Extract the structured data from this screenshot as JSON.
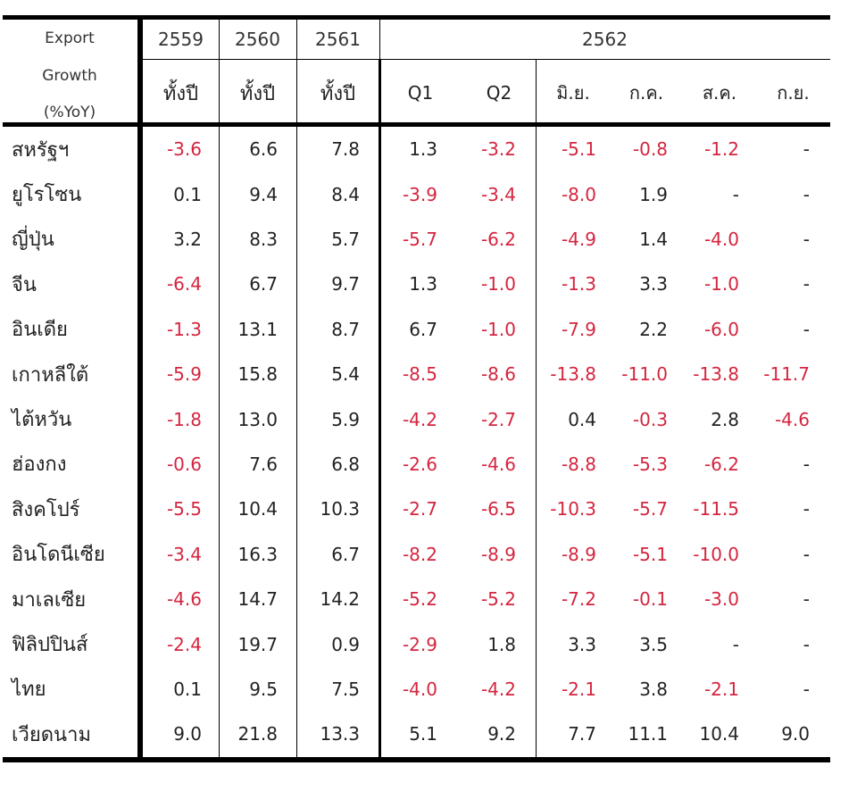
{
  "table": {
    "corner_label_lines": [
      "Export",
      "Growth",
      "(%YoY)"
    ],
    "year_headers": [
      "2559",
      "2560",
      "2561",
      "2562"
    ],
    "sub_headers": [
      "ทั้งปี",
      "ทั้งปี",
      "ทั้งปี",
      "Q1",
      "Q2",
      "มิ.ย.",
      "ก.ค.",
      "ส.ค.",
      "ก.ย."
    ],
    "negative_color": "#d4253f",
    "text_color": "#222222",
    "rows": [
      {
        "country": "สหรัฐฯ",
        "values": [
          "-3.6",
          "6.6",
          "7.8",
          "1.3",
          "-3.2",
          "-5.1",
          "-0.8",
          "-1.2",
          "-"
        ]
      },
      {
        "country": "ยูโรโซน",
        "values": [
          "0.1",
          "9.4",
          "8.4",
          "-3.9",
          "-3.4",
          "-8.0",
          "1.9",
          "-",
          "-"
        ]
      },
      {
        "country": "ญี่ปุ่น",
        "values": [
          "3.2",
          "8.3",
          "5.7",
          "-5.7",
          "-6.2",
          "-4.9",
          "1.4",
          "-4.0",
          "-"
        ]
      },
      {
        "country": "จีน",
        "values": [
          "-6.4",
          "6.7",
          "9.7",
          "1.3",
          "-1.0",
          "-1.3",
          "3.3",
          "-1.0",
          "-"
        ]
      },
      {
        "country": "อินเดีย",
        "values": [
          "-1.3",
          "13.1",
          "8.7",
          "6.7",
          "-1.0",
          "-7.9",
          "2.2",
          "-6.0",
          "-"
        ]
      },
      {
        "country": "เกาหลีใต้",
        "values": [
          "-5.9",
          "15.8",
          "5.4",
          "-8.5",
          "-8.6",
          "-13.8",
          "-11.0",
          "-13.8",
          "-11.7"
        ]
      },
      {
        "country": "ไต้หวัน",
        "values": [
          "-1.8",
          "13.0",
          "5.9",
          "-4.2",
          "-2.7",
          "0.4",
          "-0.3",
          "2.8",
          "-4.6"
        ]
      },
      {
        "country": "ฮ่องกง",
        "values": [
          "-0.6",
          "7.6",
          "6.8",
          "-2.6",
          "-4.6",
          "-8.8",
          "-5.3",
          "-6.2",
          "-"
        ]
      },
      {
        "country": "สิงคโปร์",
        "values": [
          "-5.5",
          "10.4",
          "10.3",
          "-2.7",
          "-6.5",
          "-10.3",
          "-5.7",
          "-11.5",
          "-"
        ]
      },
      {
        "country": "อินโดนีเซีย",
        "values": [
          "-3.4",
          "16.3",
          "6.7",
          "-8.2",
          "-8.9",
          "-8.9",
          "-5.1",
          "-10.0",
          "-"
        ]
      },
      {
        "country": "มาเลเซีย",
        "values": [
          "-4.6",
          "14.7",
          "14.2",
          "-5.2",
          "-5.2",
          "-7.2",
          "-0.1",
          "-3.0",
          "-"
        ]
      },
      {
        "country": "ฟิลิปปินส์",
        "values": [
          "-2.4",
          "19.7",
          "0.9",
          "-2.9",
          "1.8",
          "3.3",
          "3.5",
          "-",
          "-"
        ]
      },
      {
        "country": "ไทย",
        "values": [
          "0.1",
          "9.5",
          "7.5",
          "-4.0",
          "-4.2",
          "-2.1",
          "3.8",
          "-2.1",
          "-"
        ]
      },
      {
        "country": "เวียดนาม",
        "values": [
          "9.0",
          "21.8",
          "13.3",
          "5.1",
          "9.2",
          "7.7",
          "11.1",
          "10.4",
          "9.0"
        ]
      }
    ]
  }
}
